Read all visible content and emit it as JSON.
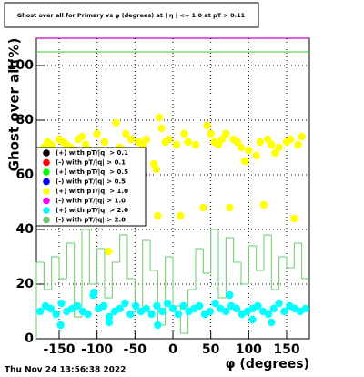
{
  "chart_data": {
    "type": "scatter",
    "title": "Ghost over all for Primary vs φ (degrees) at | η | <= 1.0 at pT > 0.11",
    "x_label": "φ (degrees)",
    "y_label": "Ghost over all(%)",
    "footer": "Thu Nov 24 13:56:38 2022",
    "xlim": [
      -180,
      180
    ],
    "ylim": [
      0,
      110
    ],
    "xticks": [
      -150,
      -100,
      -50,
      0,
      50,
      100,
      150
    ],
    "yticks": [
      0,
      20,
      40,
      60,
      80,
      100
    ],
    "grid": true,
    "legend": "left",
    "reference_line": {
      "value": 105,
      "color": "#33cc33"
    },
    "series": [
      {
        "name": "(+) with pT/|q| > 0.1",
        "color": "#000000"
      },
      {
        "name": "(-) with pT/|q| > 0.1",
        "color": "#ff0000"
      },
      {
        "name": "(+) with pT/|q| > 0.5",
        "color": "#00ff00"
      },
      {
        "name": "(-) with pT/|q| > 0.5",
        "color": "#0000ff"
      },
      {
        "name": "(+) with pT/|q| > 1.0",
        "color": "#ffff00",
        "x": [
          -170,
          -165,
          -160,
          -150,
          -145,
          -140,
          -135,
          -125,
          -120,
          -115,
          -110,
          -100,
          -95,
          -90,
          -85,
          -75,
          -70,
          -62,
          -55,
          -45,
          -40,
          -35,
          -25,
          -22,
          -20,
          -18,
          -15,
          -10,
          -5,
          5,
          10,
          15,
          20,
          30,
          40,
          45,
          50,
          55,
          60,
          65,
          70,
          75,
          80,
          85,
          90,
          95,
          100,
          110,
          115,
          120,
          125,
          130,
          135,
          140,
          150,
          155,
          160,
          165,
          170
        ],
        "values": [
          70,
          72,
          71,
          73,
          72,
          71,
          70,
          73,
          74,
          71,
          69,
          75,
          69,
          72,
          32,
          79,
          70,
          75,
          73,
          72,
          71,
          73,
          64,
          62,
          45,
          81,
          77,
          72,
          73,
          71,
          45,
          75,
          72,
          71,
          48,
          78,
          75,
          72,
          71,
          73,
          75,
          48,
          73,
          72,
          70,
          65,
          69,
          67,
          72,
          49,
          73,
          71,
          68,
          70,
          72,
          73,
          44,
          71,
          74
        ]
      },
      {
        "name": "(-) with pT/|q| > 1.0",
        "color": "#ff00ff"
      },
      {
        "name": "(+) with pT/|q| > 2.0",
        "color": "#00ffff",
        "x": [
          -175,
          -168,
          -161,
          -154,
          -147,
          -140,
          -133,
          -126,
          -119,
          -112,
          -105,
          -98,
          -91,
          -84,
          -77,
          -70,
          -63,
          -56,
          -49,
          -42,
          -35,
          -28,
          -21,
          -14,
          -7,
          0,
          7,
          14,
          21,
          28,
          35,
          42,
          49,
          56,
          63,
          70,
          77,
          84,
          91,
          98,
          105,
          112,
          119,
          126,
          133,
          140,
          147,
          154,
          161,
          168,
          175,
          -148,
          -104,
          -84,
          -20,
          75,
          105,
          130
        ],
        "values": [
          10,
          12,
          11,
          9,
          13,
          10,
          11,
          12,
          10,
          9,
          16,
          11,
          12,
          8,
          10,
          11,
          13,
          9,
          12,
          10,
          11,
          9,
          12,
          10,
          13,
          11,
          9,
          12,
          10,
          11,
          12,
          9,
          10,
          13,
          11,
          10,
          12,
          11,
          9,
          10,
          11,
          12,
          10,
          9,
          11,
          13,
          10,
          12,
          11,
          10,
          11,
          5,
          17,
          6,
          5,
          16,
          7,
          6
        ]
      },
      {
        "name": "(-) with pT/|q| > 2.0",
        "color": "#66cc66",
        "bins": [
          -180,
          -170,
          -160,
          -150,
          -140,
          -130,
          -120,
          -110,
          -100,
          -90,
          -80,
          -70,
          -60,
          -50,
          -40,
          -30,
          -20,
          -10,
          0,
          10,
          20,
          30,
          40,
          50,
          60,
          70,
          80,
          90,
          100,
          110,
          120,
          130,
          140,
          150,
          160,
          170,
          180
        ],
        "counts": [
          28,
          18,
          30,
          22,
          35,
          8,
          40,
          20,
          33,
          15,
          28,
          38,
          22,
          10,
          36,
          25,
          5,
          30,
          12,
          2,
          18,
          33,
          24,
          40,
          15,
          37,
          28,
          20,
          34,
          25,
          38,
          18,
          30,
          26,
          35,
          22
        ]
      }
    ]
  }
}
